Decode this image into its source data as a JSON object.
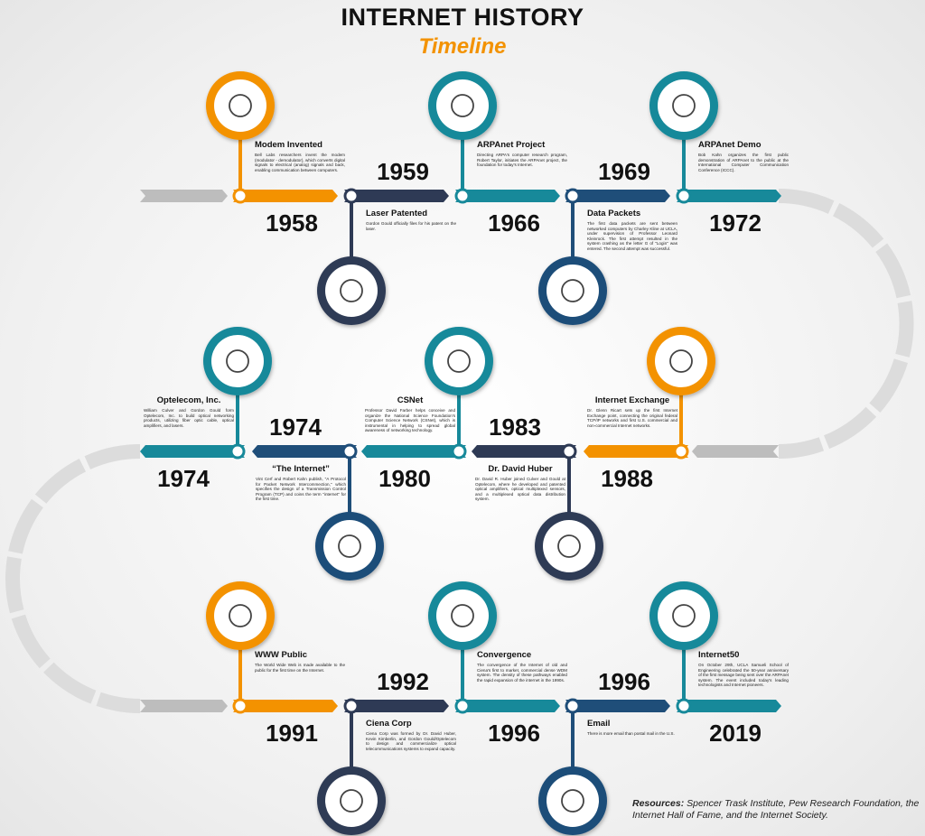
{
  "header": {
    "title": "INTERNET HISTORY",
    "subtitle": "Timeline"
  },
  "events": [
    {
      "year": "1958",
      "title": "Modem Invented",
      "description": "Bell Labs researchers invent the modem (modulator - demodulator), which converts digital signals to electrical (analog) signals and back, enabling communication between computers."
    },
    {
      "year": "1959",
      "title": "Laser Patented",
      "description": "Gordon Gould officially files for his patent on the laser."
    },
    {
      "year": "1966",
      "title": "ARPAnet Project",
      "description": "Directing ARPA's computer research program, Robert Taylor, initiates the ARPAnet project, the foundation for today's Internet."
    },
    {
      "year": "1969",
      "title": "Data Packets",
      "description": "The first data packets are sent between networked computers by Charley Kline at UCLA, under supervision of Professor Leonard Kleinrock. The first attempt resulted in the system crashing as the letter G of \"Login\" was entered. The second attempt was successful."
    },
    {
      "year": "1972",
      "title": "ARPAnet Demo",
      "description": "Bob Kahn organizes the first public demonstration of ARPAnet to the public at the International Computer Communication Conference (ICCC)."
    },
    {
      "year": "1974",
      "title": "Optelecom, Inc.",
      "description": "William Culver and Gordon Gould form Optelecom, Inc. to build optical networking products, utilizing fiber optic cable, optical amplifiers, and lasers."
    },
    {
      "year": "1974",
      "title": "“The Internet”",
      "description": "Vint Cerf and Robert Kahn publish, \"A Protocol for Packet Network Intercommection,\" which specifies the design of a Transmission Control Program (TCP) and coins the term \"internet\" for the first time."
    },
    {
      "year": "1980",
      "title": "CSNet",
      "description": "Professor David Farber helps conceive and organize the National Science Foundation's Computer Science Network (CSNet), which is instrumental in helping to spread global awareness of networking technology."
    },
    {
      "year": "1983",
      "title": "Dr. David Huber",
      "description": "Dr. David R. Huber joined Culver and Gould at Optelecom, where he developed and patented optical amplifiers, optical multiplexed sensors, and a multiplexed optical data distribution system."
    },
    {
      "year": "1988",
      "title": "Internet Exchange",
      "description": "Dr. Glenn Ricart sets up the first Internet Exchange point, connecting the original federal TCP/IP networks and first U.S. commercial and non-commercial Internet networks."
    },
    {
      "year": "1991",
      "title": "WWW Public",
      "description": "The World Wide Web is made available to the public for the first time on the Internet."
    },
    {
      "year": "1992",
      "title": "Ciena Corp",
      "description": "Ciena Corp was formed by Dr. David Huber, Kevin Kimberlin, and Gordon Gould/Optelecom to design and commercialize optical telecommunications systems to expand capacity."
    },
    {
      "year": "1996",
      "title": "Convergence",
      "description": "The convergence of the Internet of old and Ciena's first to market, commercial dense WDM system. The density of these pathways enabled the rapid expansion of the internet in the 1990s."
    },
    {
      "year": "1996",
      "title": "Email",
      "description": "There is more email than postal mail in the U.S."
    },
    {
      "year": "2019",
      "title": "Internet50",
      "description": "On October 29th, UCLA Samueli School of Engineering celebrated the 50-year anniversary of the first message being sent over the ARPAnet system. The event included today's leading technologists and Internet pioneers."
    }
  ],
  "resources": {
    "label": "Resources:",
    "text": "Spencer Trask Institute, Pew Research Foundation, the Internet Hall of Fame, and the Internet Society."
  }
}
